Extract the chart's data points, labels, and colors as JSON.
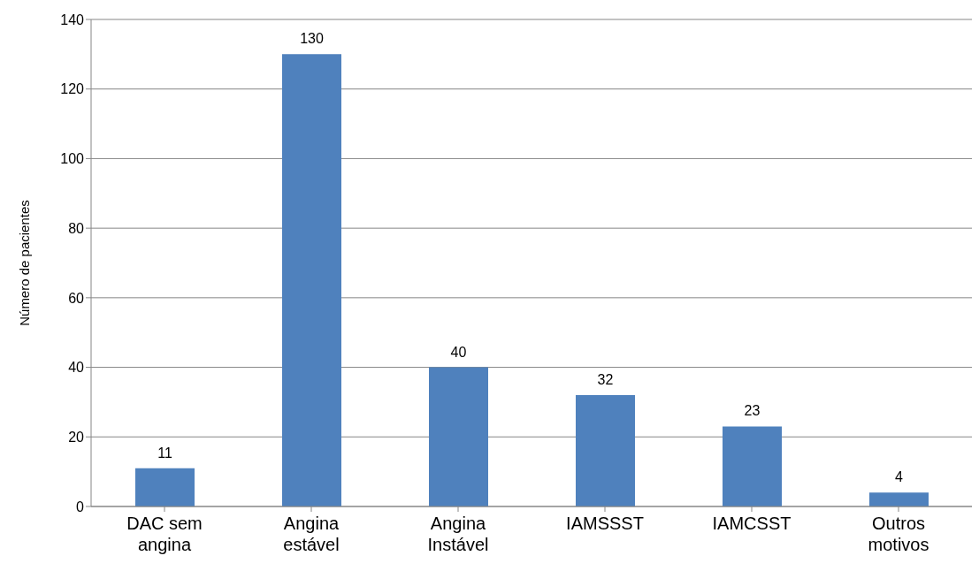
{
  "chart_data": {
    "type": "bar",
    "ylabel": "Número de pacientes",
    "categories": [
      "DAC sem angina",
      "Angina estável",
      "Angina Instável",
      "IAMSSST",
      "IAMCSST",
      "Outros motivos"
    ],
    "values": [
      11,
      130,
      40,
      32,
      23,
      4
    ],
    "color": "#4f81bd",
    "ylim": [
      0,
      140
    ],
    "yticks": [
      0,
      20,
      40,
      60,
      80,
      100,
      120,
      140
    ],
    "grid": "y",
    "data_labels": true
  }
}
